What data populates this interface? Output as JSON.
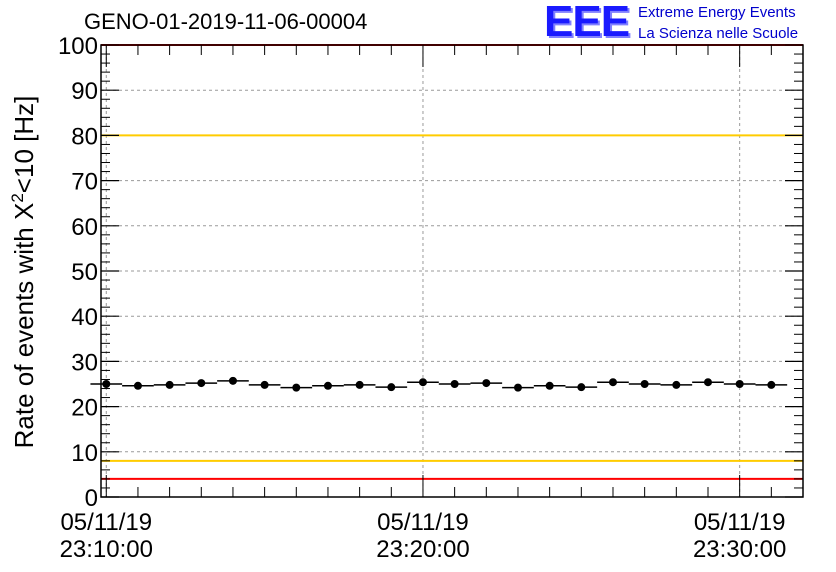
{
  "header": {
    "run_title": "GENO-01-2019-11-06-00004"
  },
  "logo": {
    "mark": "EEE",
    "line1": "Extreme Energy Events",
    "line2": "La Scienza nelle Scuole"
  },
  "colors": {
    "logo": "#0000cc",
    "red_limit": "#ff0000",
    "yellow_limit": "#ffcc00",
    "points": "#000000",
    "grid": "#9a9a9a"
  },
  "chart_data": {
    "type": "scatter",
    "title": "GENO-01-2019-11-06-00004",
    "ylabel_main": "Rate of events with X",
    "ylabel_sup": "2",
    "ylabel_tail": "<10 [Hz]",
    "xlabel": "",
    "ylim": [
      0,
      100
    ],
    "xlim": [
      "05/11/19 23:09:50",
      "05/11/19 23:32:00"
    ],
    "grid": true,
    "yticks": [
      0,
      10,
      20,
      30,
      40,
      50,
      60,
      70,
      80,
      90,
      100
    ],
    "xticks": [
      {
        "date": "05/11/19",
        "time": "23:10:00"
      },
      {
        "date": "05/11/19",
        "time": "23:20:00"
      },
      {
        "date": "05/11/19",
        "time": "23:30:00"
      }
    ],
    "reference_lines": [
      {
        "value": 100,
        "color": "#ff0000"
      },
      {
        "value": 80,
        "color": "#ffcc00"
      },
      {
        "value": 8,
        "color": "#ffcc00"
      },
      {
        "value": 4,
        "color": "#ff0000"
      }
    ],
    "series": [
      {
        "x": [
          "23:10:00",
          "23:11:00",
          "23:12:00",
          "23:13:00",
          "23:14:00",
          "23:15:00",
          "23:16:00",
          "23:17:00",
          "23:18:00",
          "23:19:00",
          "23:20:00",
          "23:21:00",
          "23:22:00",
          "23:23:00",
          "23:24:00",
          "23:25:00",
          "23:26:00",
          "23:27:00",
          "23:28:00",
          "23:29:00",
          "23:30:00",
          "23:31:00"
        ],
        "y": [
          25.0,
          24.6,
          24.8,
          25.2,
          25.7,
          24.8,
          24.2,
          24.6,
          24.8,
          24.3,
          25.4,
          25.0,
          25.2,
          24.2,
          24.6,
          24.3,
          25.4,
          25.0,
          24.8,
          25.4,
          25.0,
          24.8
        ],
        "x_error_minutes": 0.5
      }
    ]
  }
}
